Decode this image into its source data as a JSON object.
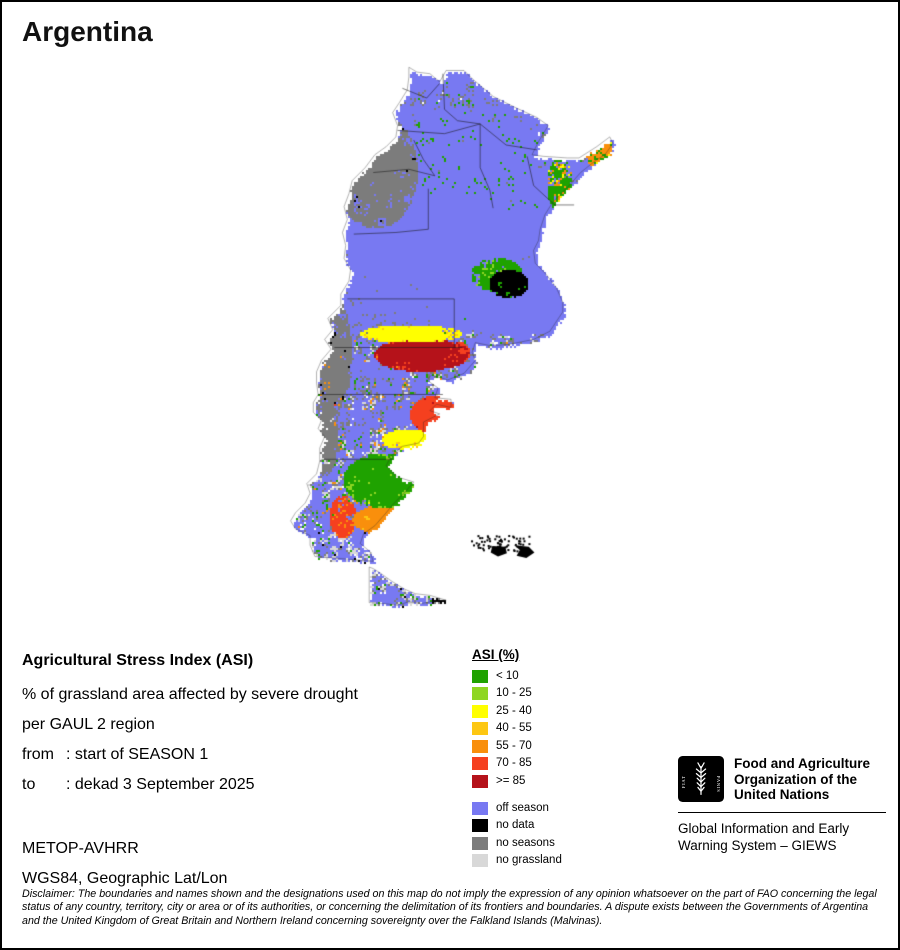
{
  "title": "Argentina",
  "info": {
    "heading": "Agricultural Stress Index (ASI)",
    "subtitle1": "% of grassland area affected by severe drought",
    "subtitle2": "per GAUL 2 region",
    "from_label": "from",
    "from_value": ": start of SEASON 1",
    "to_label": "to",
    "to_value": ": dekad 3 September 2025",
    "sensor": "METOP-AVHRR",
    "projection": "WGS84, Geographic Lat/Lon"
  },
  "legend": {
    "title": "ASI (%)",
    "classes": [
      {
        "label": "< 10",
        "color": "#1fa200"
      },
      {
        "label": "10 - 25",
        "color": "#8ed622"
      },
      {
        "label": "25 - 40",
        "color": "#ffff00"
      },
      {
        "label": "40 - 55",
        "color": "#fdc713"
      },
      {
        "label": "55 - 70",
        "color": "#f98f0c"
      },
      {
        "label": "70 - 85",
        "color": "#f5401f"
      },
      {
        "label": ">= 85",
        "color": "#b5121a"
      }
    ],
    "extra": [
      {
        "label": "off season",
        "color": "#7879f2"
      },
      {
        "label": "no data",
        "color": "#000000"
      },
      {
        "label": "no seasons",
        "color": "#7c7c7c"
      },
      {
        "label": "no grassland",
        "color": "#d8d8d8"
      }
    ]
  },
  "attribution": {
    "motto_left": "FIAT",
    "motto_right": "PANIS",
    "org_name": "Food and Agriculture Organization of the United Nations",
    "program": "Global Information and Early Warning System – GIEWS"
  },
  "disclaimer": "Disclaimer: The boundaries and names shown and the designations used on this map do not imply the expression of any opinion whatsoever on the part of FAO concerning the legal status of any country, territory, city or area or of its authorities, or concerning the delimitation of its frontiers and boundaries. A dispute exists between the Governments of Argentina and the United Kingdom of Great Britain and Northern Ireland concerning sovereignty over the Falkland Islands (Malvinas)."
}
